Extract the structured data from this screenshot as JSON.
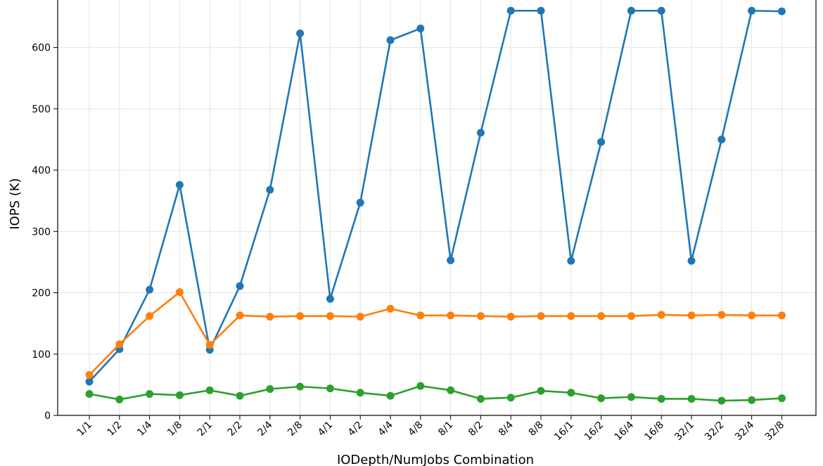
{
  "chart_data": {
    "type": "line",
    "xlabel": "IODepth/NumJobs Combination",
    "ylabel": "IOPS (K)",
    "categories": [
      "1/1",
      "1/2",
      "1/4",
      "1/8",
      "2/1",
      "2/2",
      "2/4",
      "2/8",
      "4/1",
      "4/2",
      "4/4",
      "4/8",
      "8/1",
      "8/2",
      "8/4",
      "8/8",
      "16/1",
      "16/2",
      "16/4",
      "16/8",
      "32/1",
      "32/2",
      "32/4",
      "32/8"
    ],
    "ylim": [
      0,
      680
    ],
    "yticks": [
      0,
      100,
      200,
      300,
      400,
      500,
      600
    ],
    "grid": true,
    "series": [
      {
        "color": "#1f77b4",
        "values": [
          55,
          108,
          205,
          376,
          107,
          211,
          368,
          623,
          190,
          347,
          612,
          631,
          253,
          461,
          660,
          660,
          252,
          446,
          660,
          660,
          252,
          450,
          660,
          659
        ]
      },
      {
        "color": "#ff7f0e",
        "values": [
          66,
          116,
          162,
          201,
          115,
          163,
          161,
          162,
          162,
          161,
          174,
          163,
          163,
          162,
          161,
          162,
          162,
          162,
          162,
          164,
          163,
          164,
          163,
          163
        ]
      },
      {
        "color": "#2ca02c",
        "values": [
          35,
          26,
          35,
          33,
          41,
          32,
          43,
          47,
          44,
          37,
          32,
          48,
          41,
          27,
          29,
          40,
          37,
          28,
          30,
          27,
          27,
          24,
          25,
          28
        ]
      }
    ]
  }
}
